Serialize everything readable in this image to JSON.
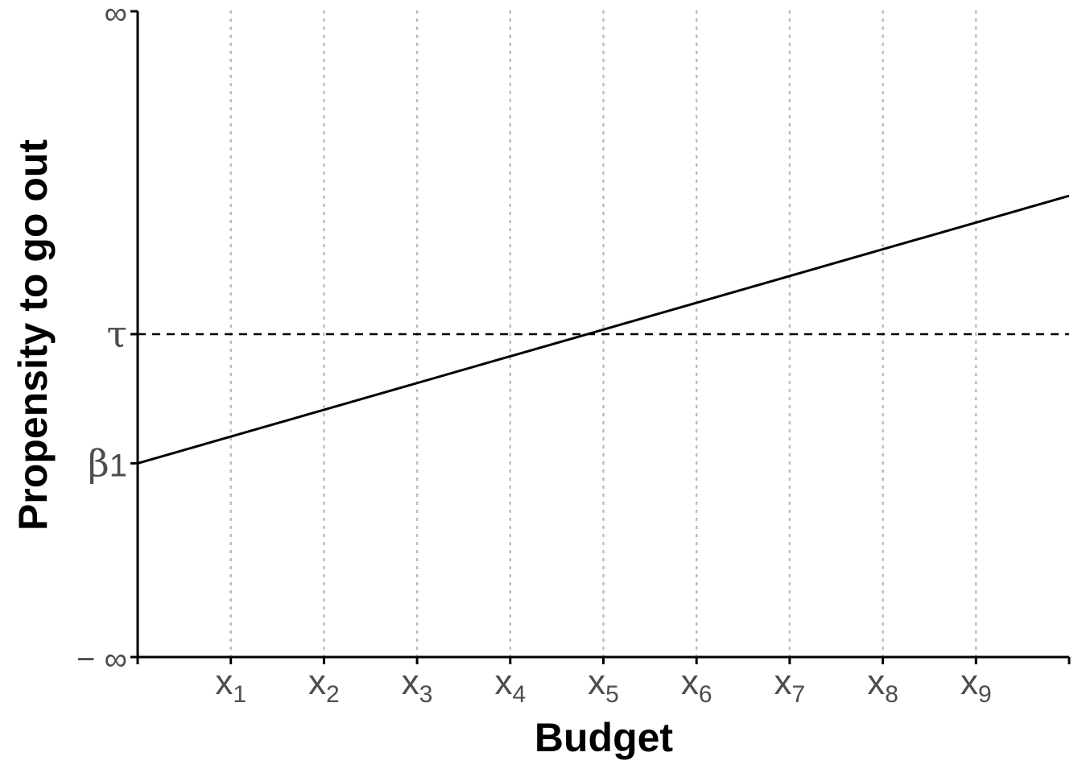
{
  "chart_data": {
    "type": "line",
    "title": "",
    "xlabel": "Budget",
    "ylabel": "Propensity to go out",
    "x_ticks": [
      {
        "base": "x",
        "sub": "1",
        "value": 1
      },
      {
        "base": "x",
        "sub": "2",
        "value": 2
      },
      {
        "base": "x",
        "sub": "3",
        "value": 3
      },
      {
        "base": "x",
        "sub": "4",
        "value": 4
      },
      {
        "base": "x",
        "sub": "5",
        "value": 5
      },
      {
        "base": "x",
        "sub": "6",
        "value": 6
      },
      {
        "base": "x",
        "sub": "7",
        "value": 7
      },
      {
        "base": "x",
        "sub": "8",
        "value": 8
      },
      {
        "base": "x",
        "sub": "9",
        "value": 9
      }
    ],
    "y_ticks": [
      {
        "base": "∞",
        "sub": "",
        "value": 10
      },
      {
        "base": "τ",
        "sub": "",
        "value": 6.5
      },
      {
        "base": "β",
        "sub": "1",
        "value": 5.1
      },
      {
        "base": "− ∞",
        "sub": "",
        "value": 3
      }
    ],
    "xlim": [
      0,
      10
    ],
    "ylim": [
      3,
      10
    ],
    "series": [
      {
        "style": "solid",
        "color": "#000000",
        "x": [
          0,
          10
        ],
        "y": [
          5.1,
          8.0
        ]
      }
    ],
    "reference_lines": [
      {
        "orientation": "horizontal",
        "style": "dashed",
        "color": "#000000",
        "y": 6.5
      }
    ],
    "grid": {
      "vertical": true,
      "horizontal": false,
      "style": "dotted",
      "color": "#bdbdbd"
    },
    "legend": "none"
  }
}
